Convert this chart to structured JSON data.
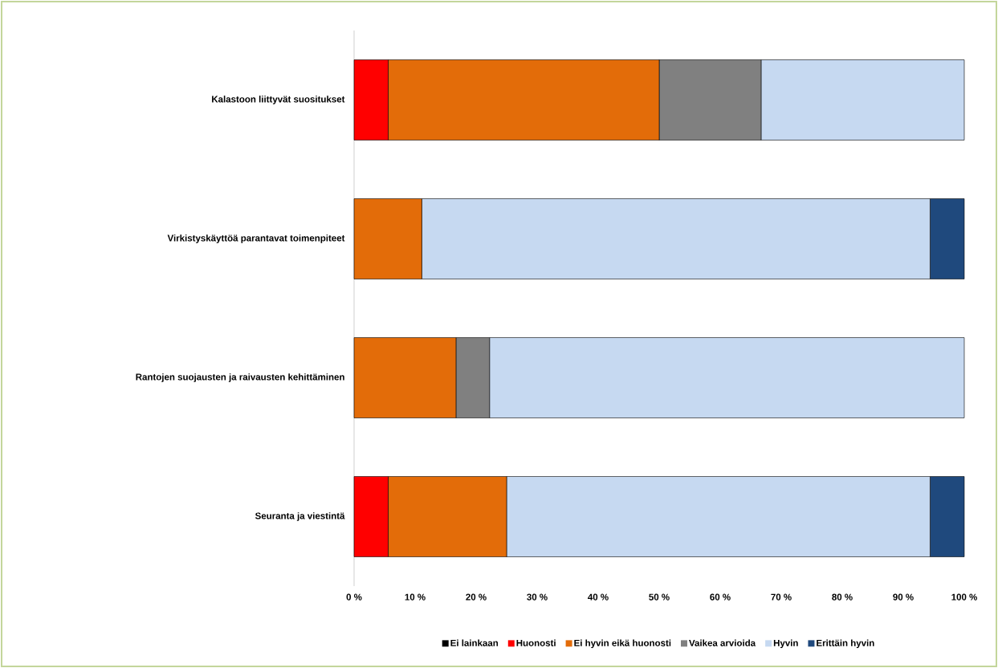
{
  "chart_data": {
    "type": "bar",
    "orientation": "horizontal",
    "stacked": true,
    "categories": [
      "Kalastoon liittyvät suositukset",
      "Virkistyskäyttöä parantavat toimenpiteet",
      "Rantojen suojausten ja raivausten kehittäminen",
      "Seuranta ja viestintä"
    ],
    "series": [
      {
        "name": "Ei lainkaan",
        "color": "#000000",
        "values": [
          0,
          0,
          0,
          0
        ]
      },
      {
        "name": "Huonosti",
        "color": "#ff0000",
        "values": [
          5.6,
          0,
          0,
          5.6
        ]
      },
      {
        "name": "Ei hyvin eikä huonosti",
        "color": "#e36c09",
        "values": [
          44.4,
          11.1,
          16.7,
          19.4
        ]
      },
      {
        "name": "Vaikea arvioida",
        "color": "#808080",
        "values": [
          16.7,
          0,
          5.5,
          0
        ]
      },
      {
        "name": "Hyvin",
        "color": "#c6d9f1",
        "values": [
          33.3,
          83.3,
          77.8,
          69.4
        ]
      },
      {
        "name": "Erittäin hyvin",
        "color": "#1f497d",
        "values": [
          0,
          5.6,
          0,
          5.6
        ]
      }
    ],
    "xlim": [
      0,
      100
    ],
    "xticks": [
      {
        "value": 0,
        "label": "0 %"
      },
      {
        "value": 10,
        "label": "10 %"
      },
      {
        "value": 20,
        "label": "20 %"
      },
      {
        "value": 30,
        "label": "30 %"
      },
      {
        "value": 40,
        "label": "40 %"
      },
      {
        "value": 50,
        "label": "50 %"
      },
      {
        "value": 60,
        "label": "60 %"
      },
      {
        "value": 70,
        "label": "70 %"
      },
      {
        "value": 80,
        "label": "80 %"
      },
      {
        "value": 90,
        "label": "90 %"
      },
      {
        "value": 100,
        "label": "100 %"
      }
    ],
    "grid": false,
    "legend": "bottom"
  }
}
